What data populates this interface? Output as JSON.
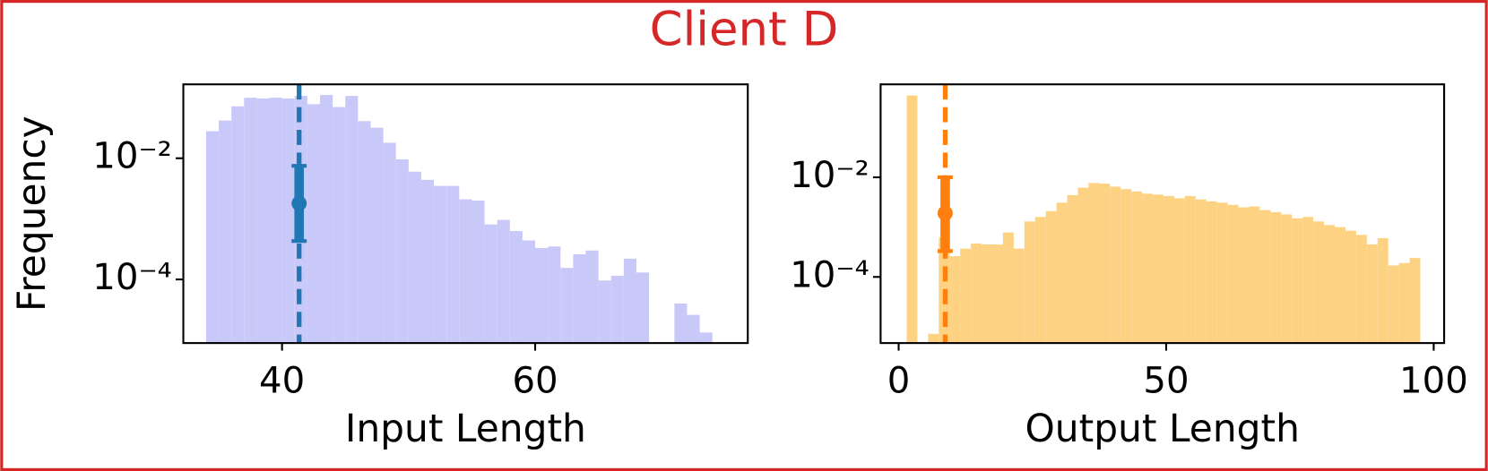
{
  "title": "Client D",
  "chart_data": [
    {
      "type": "histogram",
      "x_label": "Input Length",
      "y_label": "Frequency",
      "color": "#c9c9f9",
      "line_color": "#1f77b4",
      "log_y": true,
      "bins": [
        34,
        35,
        36,
        37,
        38,
        39,
        40,
        41,
        42,
        43,
        44,
        45,
        46,
        47,
        48,
        49,
        50,
        51,
        52,
        53,
        54,
        55,
        56,
        57,
        58,
        59,
        60,
        61,
        62,
        63,
        64,
        65,
        66,
        67,
        68,
        69,
        70,
        71,
        72,
        73,
        74
      ],
      "values": [
        0.028,
        0.042,
        0.072,
        0.1,
        0.097,
        0.1,
        0.097,
        0.107,
        0.078,
        0.111,
        0.07,
        0.107,
        0.041,
        0.032,
        0.018,
        0.0096,
        0.006,
        0.0044,
        0.0035,
        0.0035,
        0.0021,
        0.002,
        0.00081,
        0.00096,
        0.00063,
        0.00044,
        0.00033,
        0.00035,
        0.000155,
        0.00026,
        0.0003,
        9.6e-05,
        0.000115,
        0.00022,
        0.00013,
        0,
        0,
        4e-05,
        2.6e-05,
        1.33e-05
      ],
      "mean": 41.35,
      "error_marker": {
        "x": 41.35,
        "y": 0.0018,
        "ylow": 0.00043,
        "yhigh": 0.0075
      },
      "xlim": [
        32.2,
        76.8
      ],
      "ylim": [
        8.9e-06,
        0.166
      ],
      "xticks": [
        40,
        60
      ],
      "yticks": [
        {
          "value": 0.01,
          "label": "10⁻²"
        },
        {
          "value": 0.0001,
          "label": "10⁻⁴"
        }
      ]
    },
    {
      "type": "histogram",
      "x_label": "Output Length",
      "color": "#fed283",
      "line_color": "#ff7f0e",
      "log_y": true,
      "bins": [
        1.5,
        3.5,
        5.5,
        7.5,
        9.5,
        11.5,
        13.5,
        15.5,
        17.5,
        19.5,
        21.5,
        23.5,
        25.5,
        27.5,
        29.5,
        31.5,
        33.5,
        35.5,
        37.5,
        39.5,
        41.5,
        43.5,
        45.5,
        47.5,
        49.5,
        51.5,
        53.5,
        55.5,
        57.5,
        59.5,
        61.5,
        63.5,
        65.5,
        67.5,
        69.5,
        71.5,
        73.5,
        75.5,
        77.5,
        79.5,
        81.5,
        83.5,
        85.5,
        87.5,
        89.5,
        91.5,
        93.5,
        95.5,
        97.5
      ],
      "values": [
        0.44,
        0,
        7.2e-06,
        0.00063,
        0.00026,
        0.00037,
        0.00047,
        0.00045,
        0.00045,
        0.00078,
        0.00037,
        0.0013,
        0.0016,
        0.0021,
        0.0031,
        0.0044,
        0.0062,
        0.0077,
        0.0075,
        0.0065,
        0.0058,
        0.0052,
        0.0047,
        0.0045,
        0.0042,
        0.0038,
        0.0042,
        0.0036,
        0.0033,
        0.0031,
        0.0028,
        0.0025,
        0.0026,
        0.0022,
        0.002,
        0.0018,
        0.0015,
        0.0016,
        0.0013,
        0.0011,
        0.001,
        0.00085,
        0.0007,
        0.00045,
        0.0006,
        0.00017,
        0.00019,
        0.00024
      ],
      "mean": 8.7,
      "error_marker": {
        "x": 8.7,
        "y": 0.0019,
        "ylow": 0.00033,
        "yhigh": 0.01
      },
      "xlim": [
        -3.37,
        101.95
      ],
      "ylim": [
        4.7e-06,
        0.736
      ],
      "xticks": [
        0,
        50,
        100
      ],
      "yticks": [
        {
          "value": 0.01,
          "label": "10⁻²"
        },
        {
          "value": 0.0001,
          "label": "10⁻⁴"
        }
      ]
    }
  ]
}
